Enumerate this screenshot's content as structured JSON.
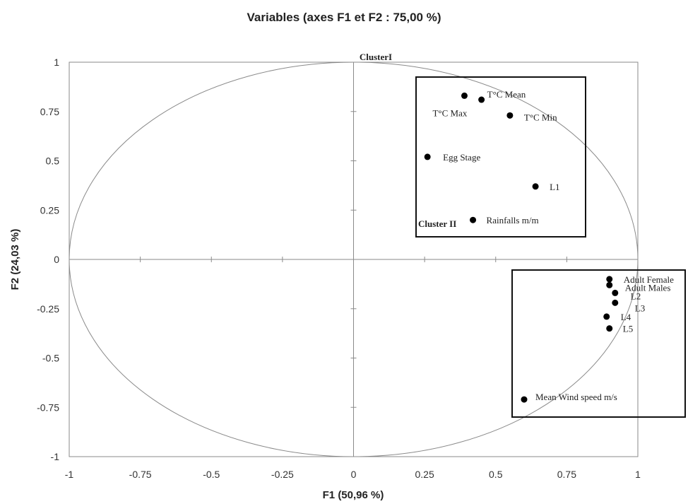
{
  "chart_data": {
    "type": "scatter",
    "title": "Variables (axes F1 et F2 : 75,00 %)",
    "xlabel": "F1 (50,96 %)",
    "ylabel": "F2 (24,03 %)",
    "xlim": [
      -1,
      1
    ],
    "ylim": [
      -1,
      1
    ],
    "x_ticks": [
      "-1",
      "-0.75",
      "-0.5",
      "-0.25",
      "0",
      "0.25",
      "0.5",
      "0.75",
      "1"
    ],
    "y_ticks": [
      "1",
      "0.75",
      "0.5",
      "0.25",
      "0",
      "-0.25",
      "-0.5",
      "-0.75",
      "-1"
    ],
    "correlation_circle": true,
    "grid": false,
    "points": [
      {
        "label": "T°C Mean",
        "x": 0.45,
        "y": 0.81
      },
      {
        "label": "T°C Max",
        "x": 0.39,
        "y": 0.83
      },
      {
        "label": "T°C Min",
        "x": 0.55,
        "y": 0.73
      },
      {
        "label": "Egg Stage",
        "x": 0.26,
        "y": 0.52
      },
      {
        "label": "L1",
        "x": 0.64,
        "y": 0.37
      },
      {
        "label": "Rainfalls m/m",
        "x": 0.42,
        "y": 0.2
      },
      {
        "label": "Adult Female",
        "x": 0.9,
        "y": -0.1
      },
      {
        "label": "Adult Males",
        "x": 0.9,
        "y": -0.13
      },
      {
        "label": "L2",
        "x": 0.92,
        "y": -0.17
      },
      {
        "label": "L3",
        "x": 0.92,
        "y": -0.22
      },
      {
        "label": "L4",
        "x": 0.89,
        "y": -0.29
      },
      {
        "label": "L5",
        "x": 0.9,
        "y": -0.35
      },
      {
        "label": "Mean Wind speed m/s",
        "x": 0.6,
        "y": -0.71
      }
    ],
    "clusters": [
      {
        "name": "ClusterI",
        "x_range": [
          0.22,
          0.82
        ],
        "y_range": [
          -0.15,
          1.0
        ],
        "bounds_f2": [
          0.11,
          0.92
        ]
      },
      {
        "name": "Cluster II",
        "x_range": [
          0.8,
          1.17
        ],
        "y_range": [
          -0.8,
          -0.06
        ]
      }
    ]
  }
}
